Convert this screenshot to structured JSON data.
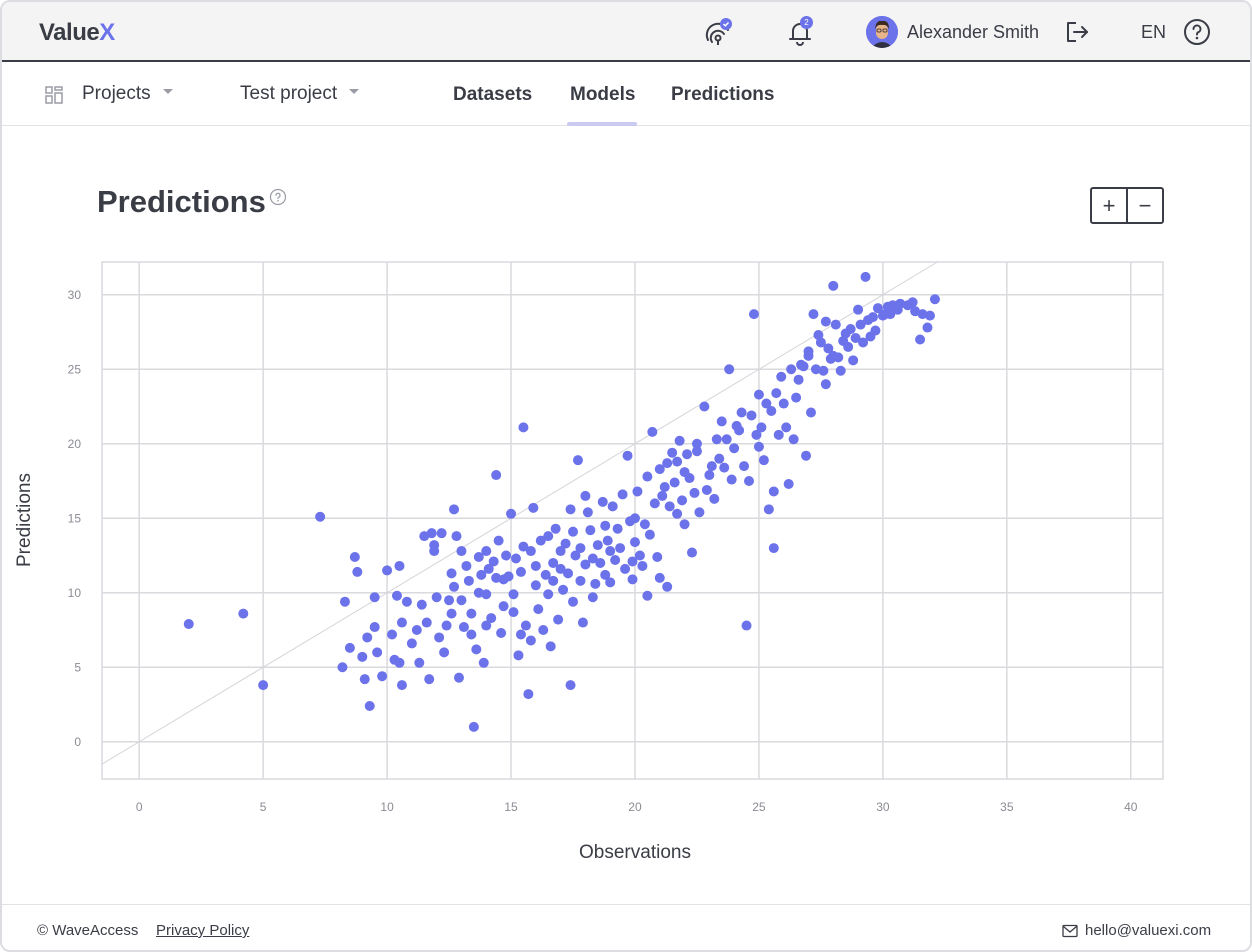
{
  "header": {
    "logo_main": "Value",
    "logo_accent": "X",
    "user_name": "Alexander Smith",
    "notifications_count": "2",
    "language": "EN",
    "accent_color": "#6b72ea"
  },
  "nav": {
    "projects_label": "Projects",
    "project_label": "Test project",
    "tabs": [
      {
        "label": "Datasets",
        "active": false
      },
      {
        "label": "Models",
        "active": true
      },
      {
        "label": "Predictions",
        "active": false
      }
    ]
  },
  "page": {
    "title": "Predictions",
    "zoom_in": "+",
    "zoom_out": "−"
  },
  "chart_data": {
    "type": "scatter",
    "xlabel": "Observations",
    "ylabel": "Predictions",
    "xlim": [
      -1.5,
      41.3
    ],
    "ylim": [
      -2.5,
      32.2
    ],
    "xticks": [
      0,
      5,
      10,
      15,
      20,
      25,
      30,
      35,
      40
    ],
    "yticks": [
      0,
      5,
      10,
      15,
      20,
      25,
      30
    ],
    "grid": true,
    "reference_line": {
      "from": [
        -1.5,
        -1.5
      ],
      "to": [
        32.2,
        32.2
      ]
    },
    "point_color": "#6b72ea",
    "points": [
      [
        2,
        7.9
      ],
      [
        4.2,
        8.6
      ],
      [
        5,
        3.8
      ],
      [
        7.3,
        15.1
      ],
      [
        8.2,
        5
      ],
      [
        8.3,
        9.4
      ],
      [
        8.5,
        6.3
      ],
      [
        8.7,
        12.4
      ],
      [
        8.8,
        11.4
      ],
      [
        9,
        5.7
      ],
      [
        9.1,
        4.2
      ],
      [
        9.2,
        7
      ],
      [
        9.3,
        2.4
      ],
      [
        9.5,
        9.7
      ],
      [
        9.5,
        7.7
      ],
      [
        9.6,
        6
      ],
      [
        9.8,
        4.4
      ],
      [
        10,
        11.5
      ],
      [
        10.2,
        7.2
      ],
      [
        10.3,
        5.5
      ],
      [
        10.4,
        9.8
      ],
      [
        10.5,
        11.8
      ],
      [
        10.5,
        5.3
      ],
      [
        10.6,
        8
      ],
      [
        10.6,
        3.8
      ],
      [
        10.8,
        9.4
      ],
      [
        11,
        6.6
      ],
      [
        11.2,
        7.5
      ],
      [
        11.3,
        5.3
      ],
      [
        11.4,
        9.2
      ],
      [
        11.5,
        13.8
      ],
      [
        11.6,
        8
      ],
      [
        11.7,
        4.2
      ],
      [
        11.8,
        14
      ],
      [
        11.9,
        13.2
      ],
      [
        11.9,
        12.8
      ],
      [
        12,
        9.7
      ],
      [
        12.1,
        7
      ],
      [
        12.2,
        14
      ],
      [
        12.3,
        6
      ],
      [
        12.4,
        7.8
      ],
      [
        12.5,
        9.5
      ],
      [
        12.6,
        11.3
      ],
      [
        12.6,
        8.6
      ],
      [
        12.7,
        15.6
      ],
      [
        12.7,
        10.4
      ],
      [
        12.8,
        13.8
      ],
      [
        12.9,
        4.3
      ],
      [
        13,
        12.8
      ],
      [
        13,
        9.5
      ],
      [
        13.1,
        7.7
      ],
      [
        13.2,
        11.8
      ],
      [
        13.3,
        10.8
      ],
      [
        13.4,
        8.6
      ],
      [
        13.4,
        7.2
      ],
      [
        13.5,
        1
      ],
      [
        13.6,
        6.2
      ],
      [
        13.7,
        12.4
      ],
      [
        13.7,
        10
      ],
      [
        13.8,
        11.2
      ],
      [
        13.9,
        5.3
      ],
      [
        14,
        12.8
      ],
      [
        14,
        9.9
      ],
      [
        14,
        7.8
      ],
      [
        14.1,
        11.6
      ],
      [
        14.2,
        8.3
      ],
      [
        14.3,
        12.1
      ],
      [
        14.4,
        11
      ],
      [
        14.4,
        17.9
      ],
      [
        14.5,
        13.5
      ],
      [
        14.6,
        7.3
      ],
      [
        14.7,
        10.9
      ],
      [
        14.7,
        9.1
      ],
      [
        14.8,
        12.5
      ],
      [
        14.9,
        11.1
      ],
      [
        15,
        15.3
      ],
      [
        15.1,
        9.9
      ],
      [
        15.1,
        8.7
      ],
      [
        15.2,
        12.3
      ],
      [
        15.3,
        5.8
      ],
      [
        15.4,
        11.4
      ],
      [
        15.4,
        7.2
      ],
      [
        15.5,
        13.1
      ],
      [
        15.5,
        21.1
      ],
      [
        15.6,
        7.8
      ],
      [
        15.7,
        3.2
      ],
      [
        15.8,
        12.8
      ],
      [
        15.8,
        6.8
      ],
      [
        15.9,
        15.7
      ],
      [
        16,
        11.8
      ],
      [
        16,
        10.5
      ],
      [
        16.1,
        8.9
      ],
      [
        16.2,
        13.5
      ],
      [
        16.3,
        7.5
      ],
      [
        16.4,
        11.2
      ],
      [
        16.5,
        13.8
      ],
      [
        16.5,
        9.9
      ],
      [
        16.6,
        6.4
      ],
      [
        16.7,
        12
      ],
      [
        16.7,
        10.8
      ],
      [
        16.8,
        14.3
      ],
      [
        16.9,
        8.2
      ],
      [
        17,
        12.8
      ],
      [
        17,
        11.6
      ],
      [
        17.1,
        10.2
      ],
      [
        17.2,
        13.3
      ],
      [
        17.3,
        11.3
      ],
      [
        17.4,
        15.6
      ],
      [
        17.4,
        3.8
      ],
      [
        17.5,
        14.1
      ],
      [
        17.5,
        9.4
      ],
      [
        17.6,
        12.5
      ],
      [
        17.7,
        18.9
      ],
      [
        17.8,
        10.8
      ],
      [
        17.8,
        13
      ],
      [
        17.9,
        8
      ],
      [
        18,
        16.5
      ],
      [
        18,
        11.9
      ],
      [
        18.1,
        15.4
      ],
      [
        18.2,
        14.2
      ],
      [
        18.3,
        12.3
      ],
      [
        18.3,
        9.7
      ],
      [
        18.4,
        10.6
      ],
      [
        18.5,
        13.2
      ],
      [
        18.6,
        12
      ],
      [
        18.7,
        16.1
      ],
      [
        18.8,
        14.5
      ],
      [
        18.8,
        11.2
      ],
      [
        18.9,
        13.5
      ],
      [
        19,
        12.8
      ],
      [
        19,
        10.7
      ],
      [
        19.1,
        15.8
      ],
      [
        19.2,
        12.2
      ],
      [
        19.3,
        14.3
      ],
      [
        19.4,
        13
      ],
      [
        19.5,
        16.6
      ],
      [
        19.6,
        11.6
      ],
      [
        19.7,
        19.2
      ],
      [
        19.8,
        14.8
      ],
      [
        19.9,
        12.1
      ],
      [
        19.9,
        10.9
      ],
      [
        20,
        15
      ],
      [
        20,
        13.4
      ],
      [
        20.1,
        16.8
      ],
      [
        20.2,
        12.5
      ],
      [
        20.3,
        11.8
      ],
      [
        20.4,
        14.6
      ],
      [
        20.5,
        9.8
      ],
      [
        20.5,
        17.8
      ],
      [
        20.6,
        13.9
      ],
      [
        20.7,
        20.8
      ],
      [
        20.8,
        16
      ],
      [
        20.9,
        12.4
      ],
      [
        21,
        11
      ],
      [
        21,
        18.3
      ],
      [
        21.1,
        16.5
      ],
      [
        21.2,
        17.1
      ],
      [
        21.3,
        18.7
      ],
      [
        21.3,
        10.4
      ],
      [
        21.4,
        15.8
      ],
      [
        21.5,
        19.4
      ],
      [
        21.6,
        17.4
      ],
      [
        21.7,
        15.3
      ],
      [
        21.7,
        18.8
      ],
      [
        21.8,
        20.2
      ],
      [
        21.9,
        16.2
      ],
      [
        22,
        14.6
      ],
      [
        22,
        18.1
      ],
      [
        22.1,
        19.3
      ],
      [
        22.2,
        17.7
      ],
      [
        22.3,
        12.7
      ],
      [
        22.4,
        16.7
      ],
      [
        22.5,
        20
      ],
      [
        22.5,
        19.5
      ],
      [
        22.6,
        15.4
      ],
      [
        22.8,
        22.5
      ],
      [
        22.9,
        16.9
      ],
      [
        23,
        17.9
      ],
      [
        23.1,
        18.5
      ],
      [
        23.2,
        16.3
      ],
      [
        23.3,
        20.3
      ],
      [
        23.4,
        19
      ],
      [
        23.5,
        21.5
      ],
      [
        23.6,
        18.4
      ],
      [
        23.7,
        20.3
      ],
      [
        23.8,
        25
      ],
      [
        23.9,
        17.6
      ],
      [
        24,
        19.7
      ],
      [
        24.1,
        21.2
      ],
      [
        24.2,
        20.9
      ],
      [
        24.3,
        22.1
      ],
      [
        24.4,
        18.5
      ],
      [
        24.5,
        7.8
      ],
      [
        24.6,
        17.5
      ],
      [
        24.7,
        21.9
      ],
      [
        24.8,
        28.7
      ],
      [
        24.9,
        20.6
      ],
      [
        25,
        19.8
      ],
      [
        25,
        23.3
      ],
      [
        25.1,
        21.1
      ],
      [
        25.2,
        18.9
      ],
      [
        25.3,
        22.7
      ],
      [
        25.4,
        15.6
      ],
      [
        25.5,
        22.2
      ],
      [
        25.6,
        13
      ],
      [
        25.6,
        16.8
      ],
      [
        25.7,
        23.4
      ],
      [
        25.8,
        20.6
      ],
      [
        25.9,
        24.5
      ],
      [
        26,
        22.7
      ],
      [
        26.1,
        21.1
      ],
      [
        26.2,
        17.3
      ],
      [
        26.3,
        25
      ],
      [
        26.4,
        20.3
      ],
      [
        26.5,
        23.1
      ],
      [
        26.6,
        24.3
      ],
      [
        26.7,
        25.3
      ],
      [
        26.8,
        25.2
      ],
      [
        26.9,
        19.2
      ],
      [
        27,
        25.9
      ],
      [
        27,
        26.2
      ],
      [
        27.1,
        22.1
      ],
      [
        27.2,
        28.7
      ],
      [
        27.3,
        25
      ],
      [
        27.4,
        27.3
      ],
      [
        27.5,
        26.8
      ],
      [
        27.6,
        24.9
      ],
      [
        27.7,
        28.2
      ],
      [
        27.7,
        24
      ],
      [
        27.8,
        26.4
      ],
      [
        27.9,
        25.7
      ],
      [
        28,
        25.9
      ],
      [
        28,
        30.6
      ],
      [
        28.1,
        28
      ],
      [
        28.2,
        25.8
      ],
      [
        28.3,
        24.9
      ],
      [
        28.4,
        26.9
      ],
      [
        28.5,
        27.4
      ],
      [
        28.6,
        26.5
      ],
      [
        28.7,
        27.7
      ],
      [
        28.8,
        25.6
      ],
      [
        28.9,
        27.1
      ],
      [
        29,
        29
      ],
      [
        29.1,
        28
      ],
      [
        29.2,
        26.8
      ],
      [
        29.3,
        31.2
      ],
      [
        29.4,
        28.3
      ],
      [
        29.5,
        27.2
      ],
      [
        29.6,
        28.5
      ],
      [
        29.7,
        27.6
      ],
      [
        29.8,
        29.1
      ],
      [
        30,
        28.6
      ],
      [
        30.1,
        28.7
      ],
      [
        30.2,
        29.2
      ],
      [
        30.3,
        28.7
      ],
      [
        30.4,
        29.3
      ],
      [
        30.6,
        29
      ],
      [
        30.7,
        29.4
      ],
      [
        31,
        29.3
      ],
      [
        31.2,
        29.5
      ],
      [
        31.3,
        28.9
      ],
      [
        31.5,
        27
      ],
      [
        31.6,
        28.7
      ],
      [
        31.8,
        27.8
      ],
      [
        31.9,
        28.6
      ],
      [
        32.1,
        29.7
      ]
    ]
  },
  "footer": {
    "copyright": "© WaveAccess",
    "privacy": "Privacy Policy",
    "email": "hello@valuexi.com"
  }
}
